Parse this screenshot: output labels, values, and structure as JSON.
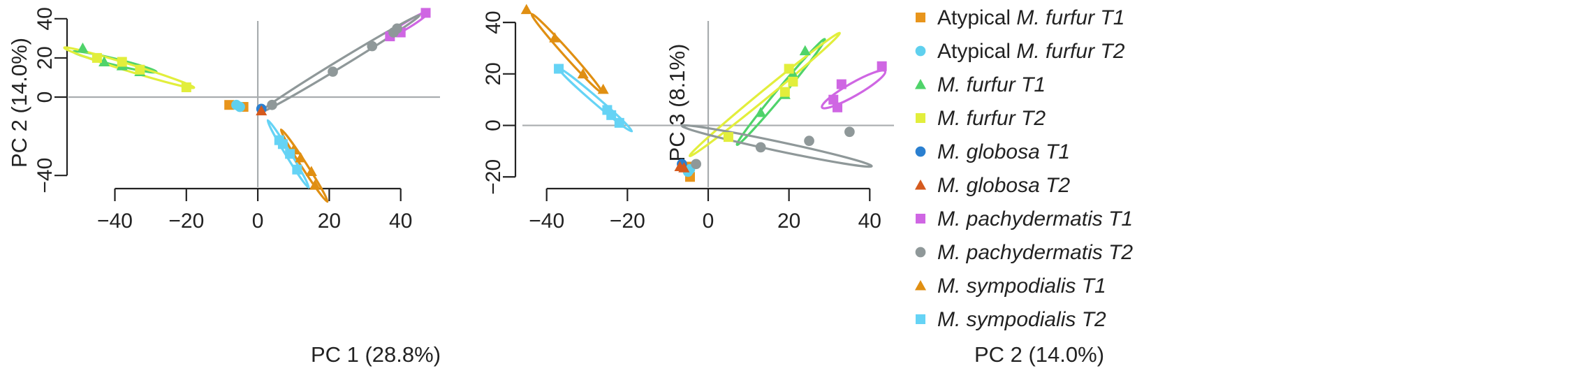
{
  "colors": {
    "orange": "#e8951c",
    "cyan": "#5fd0ee",
    "green": "#4fd36a",
    "yellow": "#e2ee3c",
    "blue": "#2a7fd0",
    "red": "#d55a1e",
    "magenta": "#cf66e3",
    "gray": "#8f9899",
    "amber": "#e08f12",
    "sky": "#65d3f5"
  },
  "legend": [
    {
      "prefix": "Atypical ",
      "italic": "M. furfur T1",
      "marker": "square",
      "color": "#e8951c"
    },
    {
      "prefix": "Atypical ",
      "italic": "M. furfur T2",
      "marker": "circle",
      "color": "#5fd0ee"
    },
    {
      "prefix": "",
      "italic": "M. furfur T1",
      "marker": "triangle",
      "color": "#4fd36a"
    },
    {
      "prefix": "",
      "italic": "M. furfur T2",
      "marker": "square",
      "color": "#e2ee3c"
    },
    {
      "prefix": "",
      "italic": "M. globosa T1",
      "marker": "circle",
      "color": "#2a7fd0"
    },
    {
      "prefix": "",
      "italic": "M. globosa T2",
      "marker": "triangle",
      "color": "#d55a1e"
    },
    {
      "prefix": "",
      "italic": "M. pachydermatis T1",
      "marker": "square",
      "color": "#cf66e3"
    },
    {
      "prefix": "",
      "italic": "M. pachydermatis T2",
      "marker": "circle",
      "color": "#8f9899"
    },
    {
      "prefix": "",
      "italic": "M. sympodialis T1",
      "marker": "triangle",
      "color": "#e08f12"
    },
    {
      "prefix": "",
      "italic": "M. sympodialis T2",
      "marker": "square",
      "color": "#65d3f5"
    }
  ],
  "chart_data": [
    {
      "type": "scatter",
      "xlabel": "PC 1 (28.8%)",
      "ylabel": "PC 2 (14.0%)",
      "xlim": [
        -53,
        51
      ],
      "ylim": [
        -46,
        46
      ],
      "xticks": [
        -40,
        -20,
        0,
        20,
        40
      ],
      "yticks": [
        -40,
        0,
        20,
        40
      ],
      "reference_lines": {
        "x": 0,
        "y": 0
      },
      "series": [
        {
          "name": "Atypical M. furfur T1",
          "marker": "square",
          "color": "#e8951c",
          "points": [
            [
              -8,
              -4
            ],
            [
              -4,
              -5
            ]
          ],
          "ellipse": null
        },
        {
          "name": "Atypical M. furfur T2",
          "marker": "circle",
          "color": "#5fd0ee",
          "points": [
            [
              -6,
              -4
            ],
            [
              -5,
              -5
            ]
          ],
          "ellipse": null
        },
        {
          "name": "M. furfur T1",
          "marker": "triangle",
          "color": "#4fd36a",
          "points": [
            [
              -49,
              25
            ],
            [
              -43,
              18
            ],
            [
              -38,
              16
            ],
            [
              -33,
              13
            ]
          ],
          "ellipse": {
            "cx": -40,
            "cy": 18,
            "rx": 12,
            "ry": 1.6,
            "angle_data": [
              9,
              -4
            ]
          }
        },
        {
          "name": "M. furfur T2",
          "marker": "square",
          "color": "#e2ee3c",
          "points": [
            [
              -45,
              20
            ],
            [
              -38,
              18
            ],
            [
              -33,
              14
            ],
            [
              -20,
              5
            ]
          ],
          "ellipse": {
            "cx": -36,
            "cy": 15,
            "rx": 19,
            "ry": 1.8,
            "angle_data": [
              16,
              -9
            ]
          }
        },
        {
          "name": "M. globosa T1",
          "marker": "circle",
          "color": "#2a7fd0",
          "points": [
            [
              1,
              -6
            ]
          ],
          "ellipse": null
        },
        {
          "name": "M. globosa T2",
          "marker": "triangle",
          "color": "#d55a1e",
          "points": [
            [
              1,
              -7
            ]
          ],
          "ellipse": null
        },
        {
          "name": "M. pachydermatis T1",
          "marker": "square",
          "color": "#cf66e3",
          "points": [
            [
              37,
              31
            ],
            [
              40,
              33
            ],
            [
              47,
              43
            ]
          ],
          "ellipse": {
            "cx": 42,
            "cy": 37,
            "rx": 7,
            "ry": 1.6,
            "angle_data": [
              8,
              9
            ]
          }
        },
        {
          "name": "M. pachydermatis T2",
          "marker": "circle",
          "color": "#8f9899",
          "points": [
            [
              4,
              -4
            ],
            [
              21,
              13
            ],
            [
              32,
              26
            ],
            [
              38,
              33
            ],
            [
              39,
              35
            ]
          ],
          "ellipse": {
            "cx": 23,
            "cy": 17,
            "rx": 26,
            "ry": 1.8,
            "angle_data": [
              36,
              40
            ]
          }
        },
        {
          "name": "M. sympodialis T1",
          "marker": "triangle",
          "color": "#e08f12",
          "points": [
            [
              10,
              -27
            ],
            [
              12,
              -31
            ],
            [
              15,
              -38
            ],
            [
              16,
              -45
            ]
          ],
          "ellipse": {
            "cx": 13,
            "cy": -35,
            "rx": 12,
            "ry": 1.4,
            "angle_data": [
              6,
              -17
            ]
          }
        },
        {
          "name": "M. sympodialis T2",
          "marker": "square",
          "color": "#65d3f5",
          "points": [
            [
              6,
              -22
            ],
            [
              7,
              -24
            ],
            [
              9,
              -29
            ],
            [
              11,
              -37
            ]
          ],
          "ellipse": {
            "cx": 8.5,
            "cy": -29,
            "rx": 11,
            "ry": 1.3,
            "angle_data": [
              5,
              -15
            ]
          }
        }
      ]
    },
    {
      "type": "scatter",
      "xlabel": "PC 2 (14.0%)",
      "ylabel": "PC 3 (8.1%)",
      "xlim": [
        -46,
        46
      ],
      "ylim": [
        -24,
        46
      ],
      "xticks": [
        -40,
        -20,
        0,
        20,
        40
      ],
      "yticks": [
        -20,
        0,
        20,
        40
      ],
      "reference_lines": {
        "x": 0,
        "y": 0
      },
      "series": [
        {
          "name": "Atypical M. furfur T1",
          "marker": "square",
          "color": "#e8951c",
          "points": [
            [
              -5,
              -16
            ],
            [
              -4.5,
              -20
            ]
          ],
          "ellipse": null
        },
        {
          "name": "Atypical M. furfur T2",
          "marker": "circle",
          "color": "#5fd0ee",
          "points": [
            [
              -4.5,
              -17
            ],
            [
              -5,
              -18
            ]
          ],
          "ellipse": null
        },
        {
          "name": "M. furfur T1",
          "marker": "triangle",
          "color": "#4fd36a",
          "points": [
            [
              13,
              5
            ],
            [
              19,
              12
            ],
            [
              21,
              20
            ],
            [
              24,
              29
            ]
          ],
          "ellipse": {
            "cx": 18,
            "cy": 13,
            "rx": 17,
            "ry": 1.5,
            "angle_data": [
              9,
              17
            ]
          }
        },
        {
          "name": "M. furfur T2",
          "marker": "square",
          "color": "#e2ee3c",
          "points": [
            [
              5,
              -4.5
            ],
            [
              19,
              13
            ],
            [
              21,
              17
            ],
            [
              20,
              22
            ]
          ],
          "ellipse": {
            "cx": 14,
            "cy": 12,
            "rx": 24,
            "ry": 1.6,
            "angle_data": [
              14,
              18
            ]
          }
        },
        {
          "name": "M. globosa T1",
          "marker": "circle",
          "color": "#2a7fd0",
          "points": [
            [
              -6.5,
              -15
            ]
          ],
          "ellipse": null
        },
        {
          "name": "M. globosa T2",
          "marker": "triangle",
          "color": "#d55a1e",
          "points": [
            [
              -7,
              -16
            ],
            [
              -6,
              -16.5
            ]
          ],
          "ellipse": null
        },
        {
          "name": "M. pachydermatis T1",
          "marker": "square",
          "color": "#cf66e3",
          "points": [
            [
              31,
              10
            ],
            [
              32,
              7
            ],
            [
              33,
              16
            ],
            [
              43,
              23
            ]
          ],
          "ellipse": {
            "cx": 36,
            "cy": 14,
            "rx": 9,
            "ry": 2.5,
            "angle_data": [
              10,
              9
            ]
          }
        },
        {
          "name": "M. pachydermatis T2",
          "marker": "circle",
          "color": "#8f9899",
          "points": [
            [
              -3,
              -15
            ],
            [
              13,
              -8.5
            ],
            [
              25,
              -6
            ],
            [
              35,
              -2.5
            ]
          ],
          "ellipse": {
            "cx": 17,
            "cy": -8,
            "rx": 24,
            "ry": 1.8,
            "angle_data": [
              45,
              -15
            ]
          }
        },
        {
          "name": "M. sympodialis T1",
          "marker": "triangle",
          "color": "#e08f12",
          "points": [
            [
              -45,
              45
            ],
            [
              -38,
              34
            ],
            [
              -31,
              20
            ],
            [
              -26,
              14
            ]
          ],
          "ellipse": {
            "cx": -35,
            "cy": 28,
            "rx": 13,
            "ry": 1.3,
            "angle_data": [
              20,
              -35
            ]
          }
        },
        {
          "name": "M. sympodialis T2",
          "marker": "square",
          "color": "#65d3f5",
          "points": [
            [
              -37,
              22
            ],
            [
              -25,
              6
            ],
            [
              -24,
              4
            ],
            [
              -22,
              1
            ]
          ],
          "ellipse": {
            "cx": -28,
            "cy": 10,
            "rx": 12,
            "ry": 1.2,
            "angle_data": [
              20,
              -27
            ]
          }
        }
      ]
    }
  ]
}
